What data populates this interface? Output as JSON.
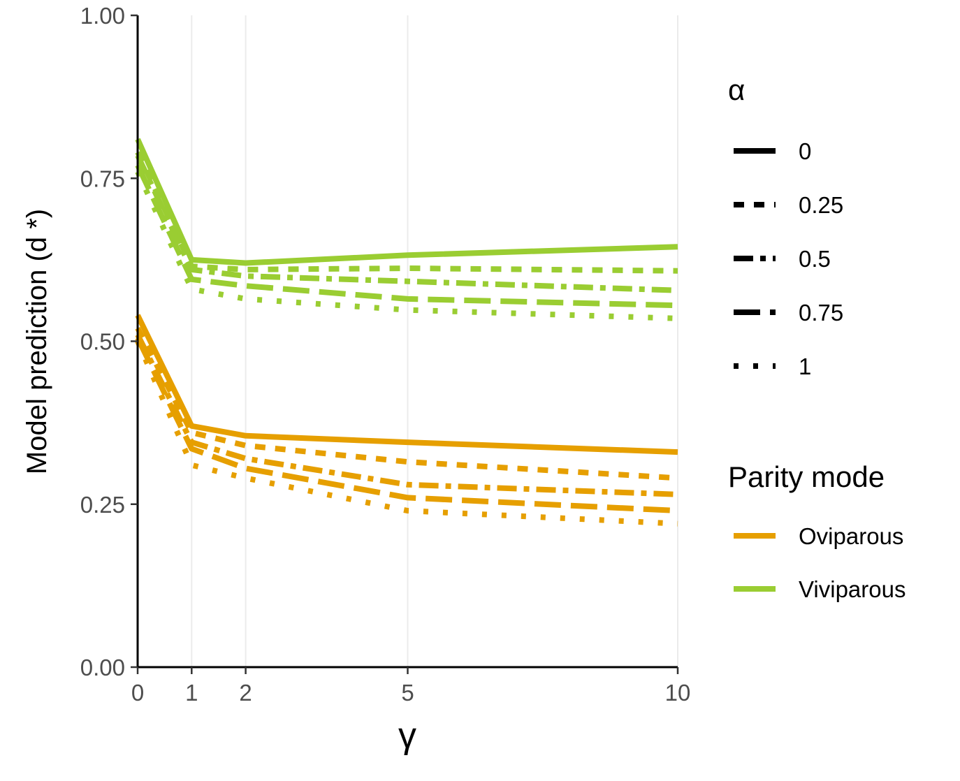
{
  "chart_data": {
    "type": "line",
    "xlabel": "γ",
    "ylabel": "Model prediction (d *)",
    "xlim": [
      0,
      10
    ],
    "ylim": [
      0,
      1
    ],
    "x_ticks": [
      0,
      1,
      2,
      5,
      10
    ],
    "x_tick_labels": [
      "0",
      "1",
      "2",
      "5",
      "10"
    ],
    "y_ticks": [
      0,
      0.25,
      0.5,
      0.75,
      1
    ],
    "y_tick_labels": [
      "0.00",
      "0.25",
      "0.50",
      "0.75",
      "1.00"
    ],
    "grid": "vertical major lines only",
    "legend_placement": "right",
    "x": [
      0,
      1,
      2,
      5,
      10
    ],
    "legends": {
      "alpha": {
        "title": "α",
        "entries": [
          {
            "label": "0",
            "dash": "solid"
          },
          {
            "label": "0.25",
            "dash": "dashed"
          },
          {
            "label": "0.5",
            "dash": "dotdash"
          },
          {
            "label": "0.75",
            "dash": "longdash"
          },
          {
            "label": "1",
            "dash": "dotted"
          }
        ]
      },
      "parity": {
        "title": "Parity mode",
        "entries": [
          {
            "label": "Oviparous",
            "color": "#E69F00"
          },
          {
            "label": "Viviparous",
            "color": "#9ACD32"
          }
        ]
      }
    },
    "series": [
      {
        "parity": "Oviparous",
        "alpha": "0",
        "values": [
          0.54,
          0.37,
          0.355,
          0.345,
          0.33
        ]
      },
      {
        "parity": "Oviparous",
        "alpha": "0.25",
        "values": [
          0.52,
          0.36,
          0.34,
          0.315,
          0.29
        ]
      },
      {
        "parity": "Oviparous",
        "alpha": "0.5",
        "values": [
          0.51,
          0.345,
          0.32,
          0.28,
          0.265
        ]
      },
      {
        "parity": "Oviparous",
        "alpha": "0.75",
        "values": [
          0.505,
          0.335,
          0.305,
          0.26,
          0.24
        ]
      },
      {
        "parity": "Oviparous",
        "alpha": "1",
        "values": [
          0.5,
          0.31,
          0.29,
          0.24,
          0.22
        ]
      },
      {
        "parity": "Viviparous",
        "alpha": "0",
        "values": [
          0.81,
          0.625,
          0.62,
          0.632,
          0.645
        ]
      },
      {
        "parity": "Viviparous",
        "alpha": "0.25",
        "values": [
          0.79,
          0.615,
          0.61,
          0.612,
          0.608
        ]
      },
      {
        "parity": "Viviparous",
        "alpha": "0.5",
        "values": [
          0.785,
          0.61,
          0.6,
          0.592,
          0.578
        ]
      },
      {
        "parity": "Viviparous",
        "alpha": "0.75",
        "values": [
          0.77,
          0.595,
          0.585,
          0.565,
          0.555
        ]
      },
      {
        "parity": "Viviparous",
        "alpha": "1",
        "values": [
          0.76,
          0.58,
          0.565,
          0.548,
          0.535
        ]
      }
    ]
  }
}
